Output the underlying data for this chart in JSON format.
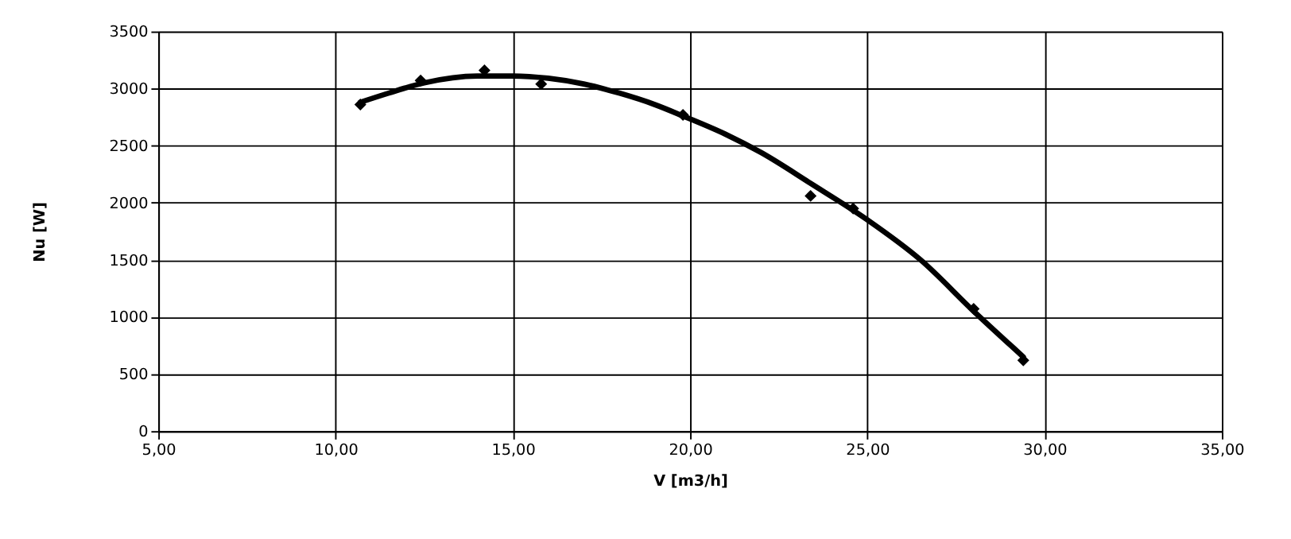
{
  "chart_data": {
    "type": "scatter",
    "xlabel": "V [m3/h]",
    "ylabel": "Nu [W]",
    "xlim": [
      5,
      35
    ],
    "ylim": [
      0,
      3500
    ],
    "xticks": [
      {
        "value": 5,
        "label": "5,00"
      },
      {
        "value": 10,
        "label": "10,00"
      },
      {
        "value": 15,
        "label": "15,00"
      },
      {
        "value": 20,
        "label": "20,00"
      },
      {
        "value": 25,
        "label": "25,00"
      },
      {
        "value": 30,
        "label": "30,00"
      },
      {
        "value": 35,
        "label": "35,00"
      }
    ],
    "yticks": [
      0,
      500,
      1000,
      1500,
      2000,
      2500,
      3000,
      3500
    ],
    "grid": true,
    "series": [
      {
        "type": "scatter",
        "marker": "diamond",
        "color": "#000000",
        "x": [
          10.7,
          12.4,
          14.2,
          15.8,
          19.8,
          23.4,
          24.6,
          28.0,
          29.4
        ],
        "values": [
          2860,
          3070,
          3160,
          3040,
          2770,
          2060,
          1950,
          1070,
          620
        ]
      },
      {
        "type": "line",
        "line_style": "solid",
        "marker": "none",
        "color": "#000000",
        "x": [
          10.7,
          11.5,
          12.5,
          14.0,
          15.0,
          16.0,
          17.0,
          18.0,
          19.0,
          19.8,
          21.0,
          22.0,
          23.4,
          25.0,
          26.5,
          28.0,
          29.4
        ],
        "values": [
          2880,
          2960,
          3050,
          3110,
          3110,
          3090,
          3040,
          2960,
          2860,
          2760,
          2600,
          2440,
          2170,
          1850,
          1500,
          1050,
          650
        ]
      }
    ]
  }
}
